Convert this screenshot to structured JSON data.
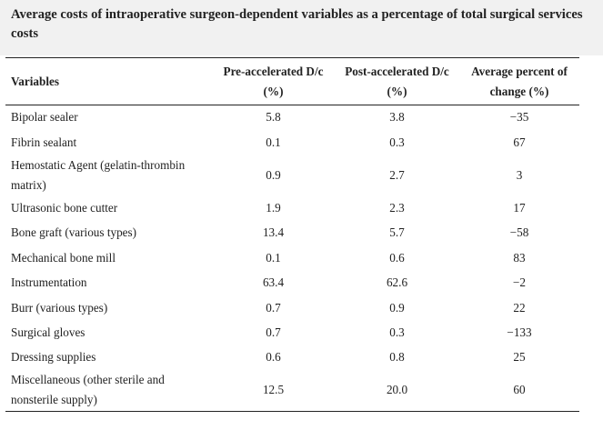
{
  "caption": "Average costs of intraoperative surgeon-dependent variables as a percentage of total surgical services costs",
  "table": {
    "headers": {
      "variables": "Variables",
      "pre": "Pre-accelerated D/c (%)",
      "post": "Post-accelerated D/c (%)",
      "change": "Average percent of change (%)"
    },
    "rows": [
      {
        "variable": "Bipolar sealer",
        "pre": "5.8",
        "post": "3.8",
        "change": "−35"
      },
      {
        "variable": "Fibrin sealant",
        "pre": "0.1",
        "post": "0.3",
        "change": "67"
      },
      {
        "variable": "Hemostatic Agent (gelatin-thrombin matrix)",
        "pre": "0.9",
        "post": "2.7",
        "change": "3"
      },
      {
        "variable": "Ultrasonic bone cutter",
        "pre": "1.9",
        "post": "2.3",
        "change": "17"
      },
      {
        "variable": "Bone graft (various types)",
        "pre": "13.4",
        "post": "5.7",
        "change": "−58"
      },
      {
        "variable": "Mechanical bone mill",
        "pre": "0.1",
        "post": "0.6",
        "change": "83"
      },
      {
        "variable": "Instrumentation",
        "pre": "63.4",
        "post": "62.6",
        "change": "−2"
      },
      {
        "variable": "Burr (various types)",
        "pre": "0.7",
        "post": "0.9",
        "change": "22"
      },
      {
        "variable": "Surgical gloves",
        "pre": "0.7",
        "post": "0.3",
        "change": "−133"
      },
      {
        "variable": "Dressing supplies",
        "pre": "0.6",
        "post": "0.8",
        "change": "25"
      },
      {
        "variable": "Miscellaneous (other sterile and nonsterile supply)",
        "pre": "12.5",
        "post": "20.0",
        "change": "60"
      }
    ]
  }
}
